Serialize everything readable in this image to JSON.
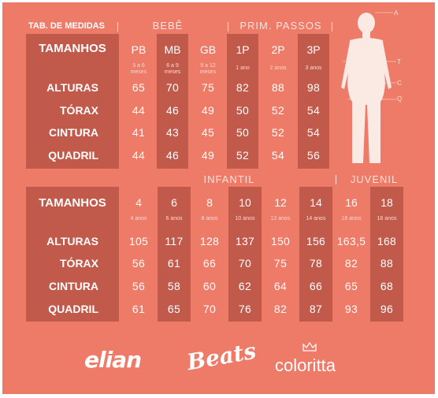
{
  "top": {
    "title": "TAB. DE MEDIDAS",
    "headers": [
      "BEBÊ",
      "PRIM. PASSOS"
    ],
    "sizes_label": "TAMANHOS",
    "sizes": [
      {
        "size": "PB",
        "age": "3 a 6 meses"
      },
      {
        "size": "MB",
        "age": "6 a 9 meses"
      },
      {
        "size": "GB",
        "age": "9 a 12 meses"
      },
      {
        "size": "1P",
        "age": "1 ano"
      },
      {
        "size": "2P",
        "age": "2 anos"
      },
      {
        "size": "3P",
        "age": "3 anos"
      }
    ],
    "rows": [
      {
        "label": "ALTURAS",
        "values": [
          "65",
          "70",
          "75",
          "82",
          "88",
          "98"
        ]
      },
      {
        "label": "TÓRAX",
        "values": [
          "44",
          "46",
          "49",
          "50",
          "52",
          "54"
        ]
      },
      {
        "label": "CINTURA",
        "values": [
          "41",
          "43",
          "45",
          "50",
          "52",
          "54"
        ]
      },
      {
        "label": "QUADRIL",
        "values": [
          "44",
          "46",
          "49",
          "52",
          "54",
          "56"
        ]
      }
    ]
  },
  "figure": {
    "markers": [
      "A",
      "T",
      "C",
      "Q"
    ]
  },
  "bottom": {
    "headers": [
      "INFANTIL",
      "JUVENIL"
    ],
    "sizes_label": "TAMANHOS",
    "sizes": [
      {
        "size": "4",
        "age": "4 anos"
      },
      {
        "size": "6",
        "age": "6 anos"
      },
      {
        "size": "8",
        "age": "8 anos"
      },
      {
        "size": "10",
        "age": "10 anos"
      },
      {
        "size": "12",
        "age": "12 anos"
      },
      {
        "size": "14",
        "age": "14 anos"
      },
      {
        "size": "16",
        "age": "16 anos"
      },
      {
        "size": "18",
        "age": "18 anos"
      }
    ],
    "rows": [
      {
        "label": "ALTURAS",
        "values": [
          "105",
          "117",
          "128",
          "137",
          "150",
          "156",
          "163,5",
          "168"
        ]
      },
      {
        "label": "TÓRAX",
        "values": [
          "56",
          "61",
          "66",
          "70",
          "75",
          "78",
          "82",
          "88"
        ]
      },
      {
        "label": "CINTURA",
        "values": [
          "56",
          "58",
          "60",
          "62",
          "64",
          "66",
          "65",
          "68"
        ]
      },
      {
        "label": "QUADRIL",
        "values": [
          "61",
          "65",
          "70",
          "76",
          "82",
          "87",
          "93",
          "96"
        ]
      }
    ]
  },
  "brands": [
    "elian",
    "Beats",
    "coloritta"
  ]
}
